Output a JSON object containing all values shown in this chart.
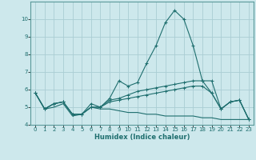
{
  "xlabel": "Humidex (Indice chaleur)",
  "x": [
    0,
    1,
    2,
    3,
    4,
    5,
    6,
    7,
    8,
    9,
    10,
    11,
    12,
    13,
    14,
    15,
    16,
    17,
    18,
    19,
    20,
    21,
    22,
    23
  ],
  "line1": [
    5.8,
    4.9,
    5.2,
    5.3,
    4.6,
    4.6,
    5.2,
    5.0,
    5.5,
    6.5,
    6.2,
    6.4,
    7.5,
    8.5,
    9.8,
    10.5,
    10.0,
    8.5,
    6.5,
    5.8,
    4.9,
    5.3,
    5.4,
    4.3
  ],
  "line2": [
    5.8,
    4.9,
    5.2,
    5.3,
    4.6,
    4.6,
    5.0,
    5.0,
    5.4,
    5.5,
    5.7,
    5.9,
    6.0,
    6.1,
    6.2,
    6.3,
    6.4,
    6.5,
    6.5,
    6.5,
    4.9,
    5.3,
    5.4,
    4.3
  ],
  "line3": [
    5.8,
    4.9,
    5.2,
    5.3,
    4.6,
    4.6,
    5.0,
    5.0,
    5.3,
    5.4,
    5.5,
    5.6,
    5.7,
    5.8,
    5.9,
    6.0,
    6.1,
    6.2,
    6.2,
    5.8,
    4.9,
    5.3,
    5.4,
    4.3
  ],
  "line4": [
    5.8,
    4.9,
    5.0,
    5.2,
    4.5,
    4.6,
    5.0,
    4.9,
    4.9,
    4.8,
    4.7,
    4.7,
    4.6,
    4.6,
    4.5,
    4.5,
    4.5,
    4.5,
    4.4,
    4.4,
    4.3,
    4.3,
    4.3,
    4.3
  ],
  "bg_color": "#cde8ec",
  "grid_color": "#aacdd4",
  "line_color": "#1e6e6e",
  "spine_color": "#5a9a9a",
  "ylim": [
    4.0,
    11.0
  ],
  "xlim": [
    -0.5,
    23.5
  ],
  "yticks": [
    4,
    5,
    6,
    7,
    8,
    9,
    10
  ],
  "xticks": [
    0,
    1,
    2,
    3,
    4,
    5,
    6,
    7,
    8,
    9,
    10,
    11,
    12,
    13,
    14,
    15,
    16,
    17,
    18,
    19,
    20,
    21,
    22,
    23
  ],
  "tick_fontsize": 5.0,
  "xlabel_fontsize": 6.0
}
